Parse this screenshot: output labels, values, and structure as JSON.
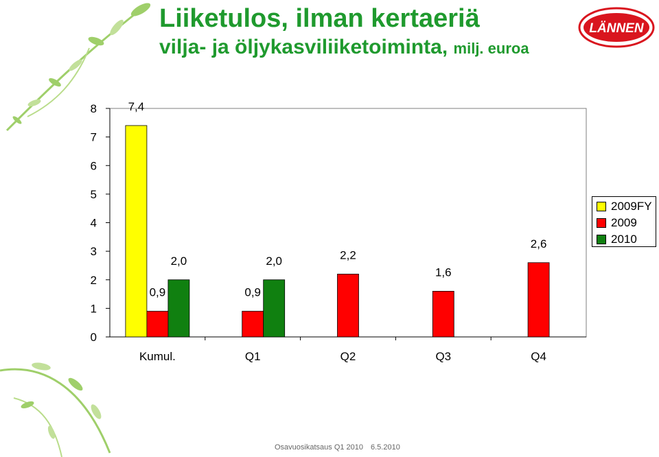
{
  "header": {
    "title": "Liiketulos, ilman kertaeriä",
    "subtitle": "vilja- ja öljykasviliiketoiminta,",
    "subtitle_unit": "milj. euroa"
  },
  "logo": {
    "text": "LÄNNEN",
    "color": "#d9151e"
  },
  "footer": {
    "left": "Osavuosikatsaus Q1 2010",
    "right": "6.5.2010"
  },
  "chart_data": {
    "type": "bar",
    "categories": [
      "Kumul.",
      "Q1",
      "Q2",
      "Q3",
      "Q4"
    ],
    "series": [
      {
        "name": "2009FY",
        "color": "#ffff00",
        "values": [
          7.4,
          null,
          null,
          null,
          null
        ],
        "labels": [
          "7,4",
          null,
          null,
          null,
          null
        ]
      },
      {
        "name": "2009",
        "color": "#ff0000",
        "values": [
          0.9,
          0.9,
          2.2,
          1.6,
          2.6
        ],
        "labels": [
          "0,9",
          "0,9",
          "2,2",
          "1,6",
          "2,6"
        ]
      },
      {
        "name": "2010",
        "color": "#108010",
        "values": [
          2.0,
          2.0,
          null,
          null,
          null
        ],
        "labels": [
          "2,0",
          "2,0",
          null,
          null,
          null
        ]
      }
    ],
    "y_ticks": [
      0,
      1,
      2,
      3,
      4,
      5,
      6,
      7,
      8
    ],
    "ylim": [
      0,
      8
    ],
    "legend_position": "right"
  }
}
